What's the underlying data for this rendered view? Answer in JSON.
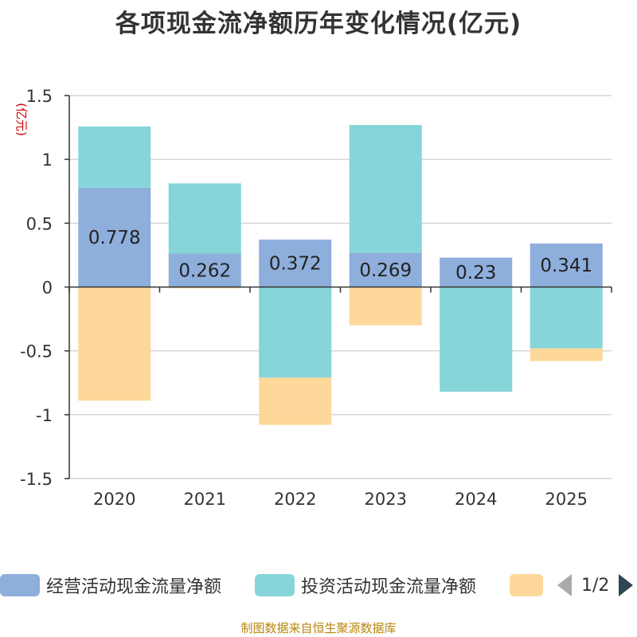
{
  "chart_data": {
    "type": "stacked-bar",
    "title": "各项现金流净额历年变化情况(亿元)",
    "ylabel": "(亿元)",
    "ylim": [
      -1.5,
      1.5
    ],
    "yticks": [
      1.5,
      1,
      0.5,
      0,
      -0.5,
      -1,
      -1.5
    ],
    "ytick_labels": [
      "1.5",
      "1",
      "0.5",
      "0",
      "-0.5",
      "-1",
      "-1.5"
    ],
    "grid": true,
    "categories": [
      "2020",
      "2021",
      "2022",
      "2023",
      "2024",
      "2025"
    ],
    "series": [
      {
        "name": "经营活动现金流量净额",
        "color": "#8eaedc",
        "values": [
          0.778,
          0.262,
          0.372,
          0.269,
          0.23,
          0.341
        ],
        "labels": [
          "0.778",
          "0.262",
          "0.372",
          "0.269",
          "0.23",
          "0.341"
        ]
      },
      {
        "name": "投资活动现金流量净额",
        "color": "#86d5d8",
        "values": [
          0.48,
          0.55,
          -0.71,
          1.0,
          -0.82,
          -0.48
        ]
      },
      {
        "name": "",
        "color": "#fdd89a",
        "values": [
          -0.89,
          -0.01,
          -0.37,
          -0.3,
          0,
          -0.1
        ]
      }
    ]
  },
  "legend": {
    "page_indicator": "1/2",
    "prev_icon": "triangle-left-icon",
    "next_icon": "triangle-right-icon"
  },
  "source": "制图数据来自恒生聚源数据库"
}
